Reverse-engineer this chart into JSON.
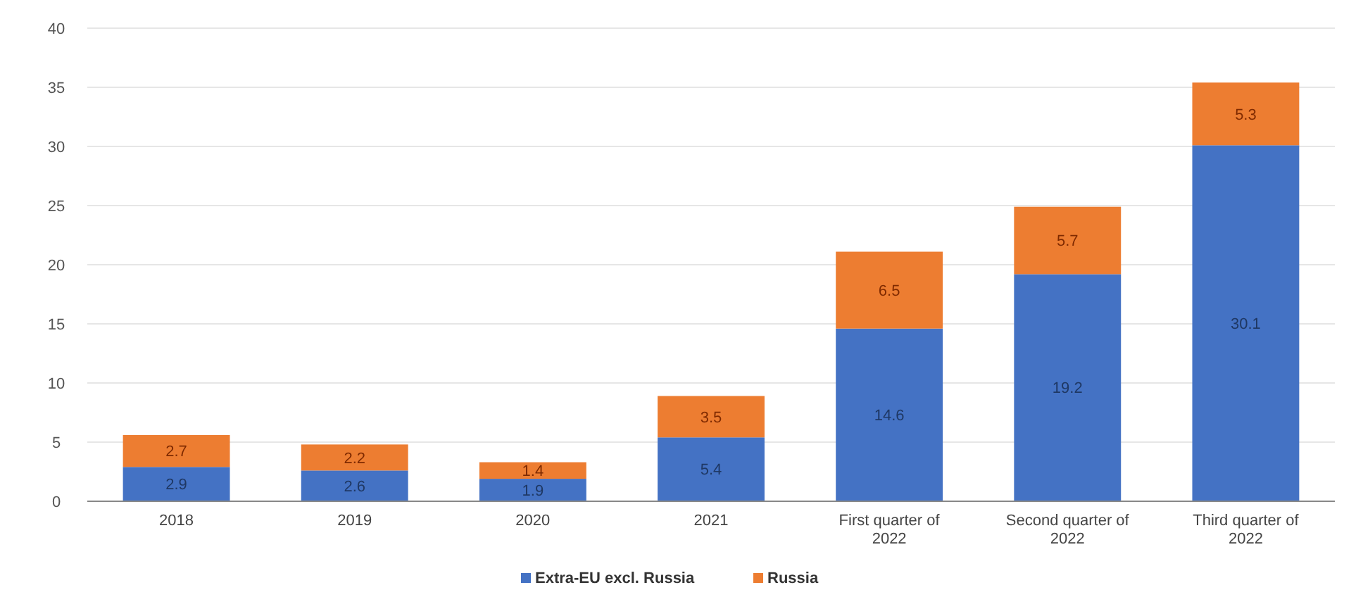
{
  "chart_data": {
    "type": "bar",
    "stacked": true,
    "categories": [
      "2018",
      "2019",
      "2020",
      "2021",
      "First quarter of 2022",
      "Second quarter of 2022",
      "Third quarter of 2022"
    ],
    "series": [
      {
        "name": "Extra-EU excl. Russia",
        "color": "#4472c4",
        "values": [
          2.9,
          2.6,
          1.9,
          5.4,
          14.6,
          19.2,
          30.1
        ]
      },
      {
        "name": "Russia",
        "color": "#ed7d31",
        "values": [
          2.7,
          2.2,
          1.4,
          3.5,
          6.5,
          5.7,
          5.3
        ]
      }
    ],
    "ylim": [
      0,
      40
    ],
    "yticks": [
      0,
      5,
      10,
      15,
      20,
      25,
      30,
      35,
      40
    ],
    "grid": "y",
    "legend": "bottom",
    "data_labels": true
  }
}
